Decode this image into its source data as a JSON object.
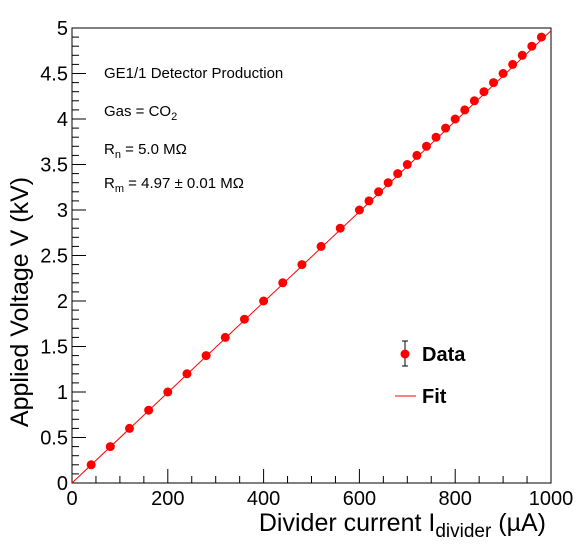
{
  "chart_data": {
    "type": "scatter",
    "xlabel_main": "Divider current I",
    "xlabel_sub": "divider",
    "xlabel_unit": " (µA)",
    "ylabel": "Applied Voltage V (kV)",
    "xlim": [
      0,
      1000
    ],
    "ylim": [
      0,
      5
    ],
    "x_ticks": [
      "0",
      "200",
      "400",
      "600",
      "800",
      "1000"
    ],
    "y_ticks": [
      "0",
      "0.5",
      "1",
      "1.5",
      "2",
      "2.5",
      "3",
      "3.5",
      "4",
      "4.5",
      "5"
    ],
    "grid": false,
    "legend_position": "center-right",
    "annotations": {
      "title": "GE1/1 Detector Production",
      "gas_main": "Gas = CO",
      "gas_sub": "2",
      "rn_main": "R",
      "rn_sub": "n",
      "rn_value": " = 5.0 MΩ",
      "rm_main": "R",
      "rm_sub": "m",
      "rm_value": " = 4.97 ± 0.01 MΩ"
    },
    "series": [
      {
        "name": "Data",
        "color": "#ff0000",
        "points": [
          [
            40,
            0.2
          ],
          [
            80,
            0.4
          ],
          [
            120,
            0.6
          ],
          [
            160,
            0.8
          ],
          [
            200,
            1.0
          ],
          [
            240,
            1.2
          ],
          [
            280,
            1.4
          ],
          [
            320,
            1.6
          ],
          [
            360,
            1.8
          ],
          [
            400,
            2.0
          ],
          [
            440,
            2.2
          ],
          [
            480,
            2.4
          ],
          [
            520,
            2.6
          ],
          [
            560,
            2.8
          ],
          [
            600,
            3.0
          ],
          [
            620,
            3.1
          ],
          [
            640,
            3.2
          ],
          [
            660,
            3.3
          ],
          [
            680,
            3.4
          ],
          [
            700,
            3.5
          ],
          [
            720,
            3.6
          ],
          [
            740,
            3.7
          ],
          [
            760,
            3.8
          ],
          [
            780,
            3.9
          ],
          [
            800,
            4.0
          ],
          [
            820,
            4.1
          ],
          [
            840,
            4.2
          ],
          [
            860,
            4.3
          ],
          [
            880,
            4.4
          ],
          [
            900,
            4.5
          ],
          [
            920,
            4.6
          ],
          [
            940,
            4.7
          ],
          [
            960,
            4.8
          ],
          [
            980,
            4.9
          ]
        ]
      },
      {
        "name": "Fit",
        "color": "#ff0000",
        "line": [
          [
            0,
            0
          ],
          [
            1000,
            4.97
          ]
        ]
      }
    ]
  }
}
